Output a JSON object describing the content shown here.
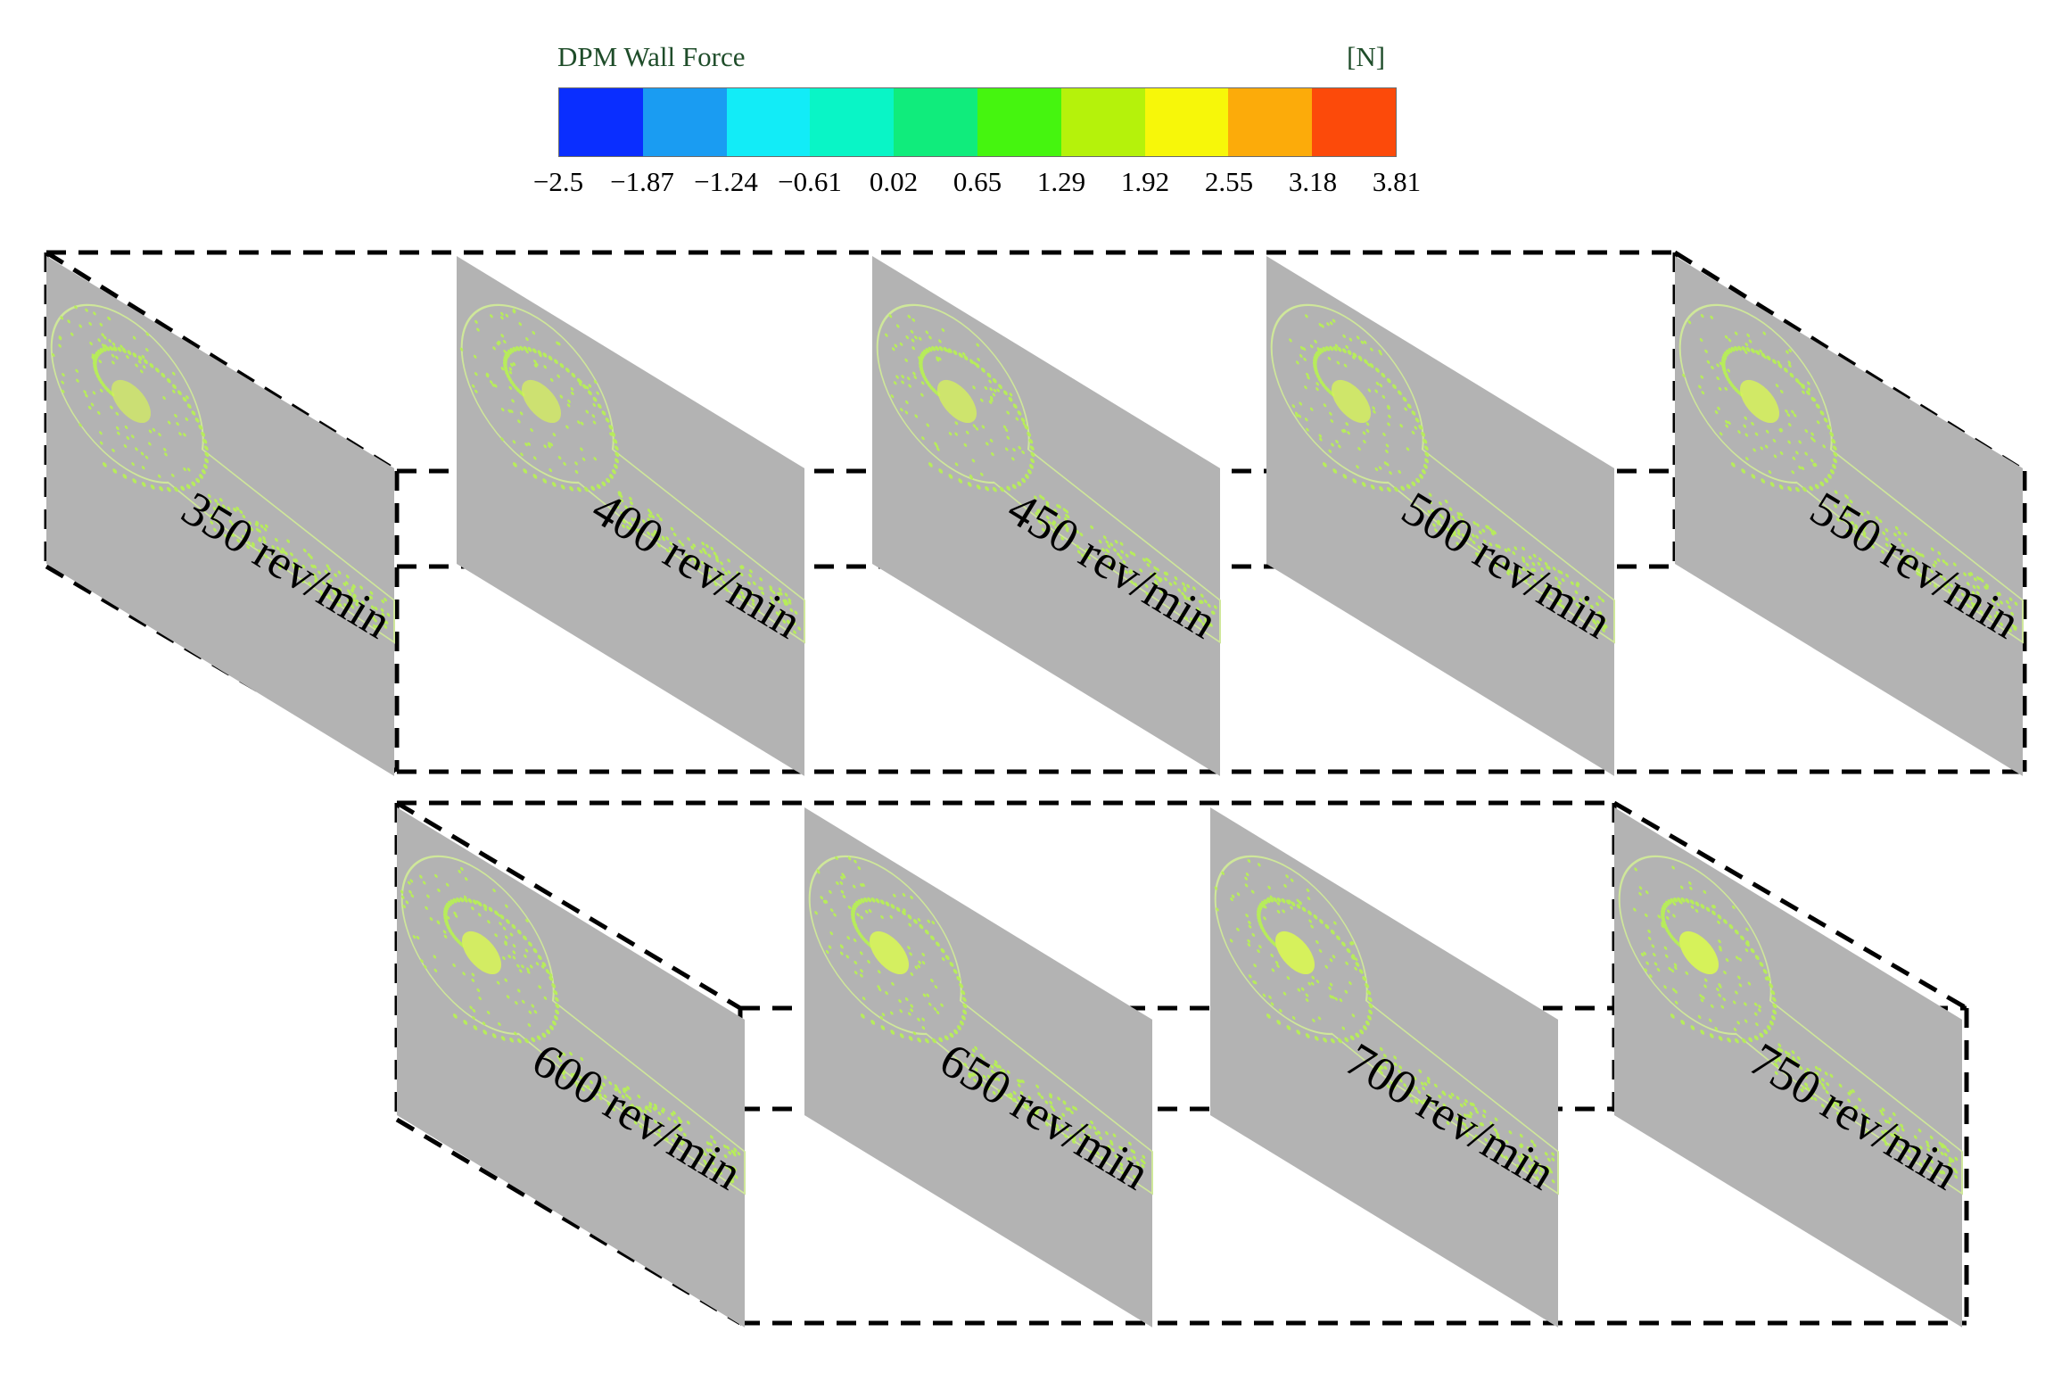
{
  "legend": {
    "title": "DPM Wall Force",
    "unit": "[N]",
    "colors": [
      "#0a2eff",
      "#1a9cf2",
      "#12ecf7",
      "#09f5c6",
      "#10ec7c",
      "#45f50f",
      "#b5f20b",
      "#f7f709",
      "#fcab0a",
      "#fc4a0a"
    ],
    "ticks": [
      "−2.5",
      "−1.87",
      "−1.24",
      "−0.61",
      "0.02",
      "0.65",
      "1.29",
      "1.92",
      "2.55",
      "3.18",
      "3.81"
    ]
  },
  "panels": [
    {
      "label": "350 rev/min"
    },
    {
      "label": "400 rev/min"
    },
    {
      "label": "450 rev/min"
    },
    {
      "label": "500 rev/min"
    },
    {
      "label": "550 rev/min"
    },
    {
      "label": "600 rev/min"
    },
    {
      "label": "650 rev/min"
    },
    {
      "label": "700 rev/min"
    },
    {
      "label": "750 rev/min"
    }
  ],
  "colors": {
    "panel_fill": "#b3b3b3",
    "particle": "#b7ec5b",
    "particle_dense": "#d6f25a",
    "outline": "#cfe79a",
    "frame": "#000000"
  }
}
